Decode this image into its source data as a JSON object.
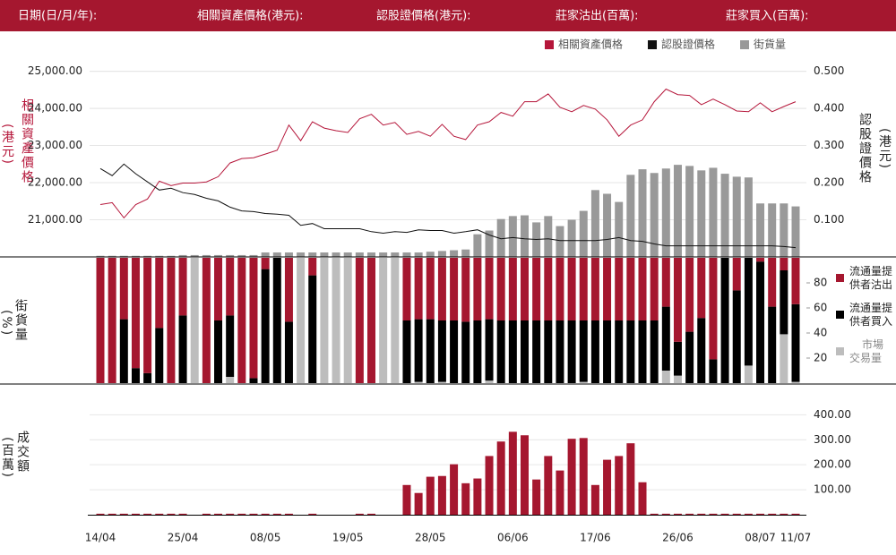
{
  "header": [
    "日期(日/月/年):",
    "相關資產價格(港元):",
    "認股證價格(港元):",
    "莊家沽出(百萬):",
    "莊家買入(百萬):"
  ],
  "chart_data": [
    {
      "type": "line",
      "ylabel": "相關資產價格",
      "ylabel_unit": "(港元)",
      "y2label": "認股證價格",
      "y2label_unit": "(港元)",
      "ylim": [
        20000,
        25400
      ],
      "yticks": [
        {
          "value": 21000,
          "label": "21,000.00"
        },
        {
          "value": 22000,
          "label": "22,000.00"
        },
        {
          "value": 23000,
          "label": "23,000.00"
        },
        {
          "value": 24000,
          "label": "24,000.00"
        },
        {
          "value": 25000,
          "label": "25,000.00"
        }
      ],
      "y2lim": [
        0,
        0.54
      ],
      "y2ticks": [
        {
          "value": 0.1,
          "label": "0.100"
        },
        {
          "value": 0.2,
          "label": "0.200"
        },
        {
          "value": 0.3,
          "label": "0.300"
        },
        {
          "value": 0.4,
          "label": "0.400"
        },
        {
          "value": 0.5,
          "label": "0.500"
        }
      ],
      "grid": true,
      "legend": "top-right",
      "series": [
        {
          "name": "相關資產價格",
          "color": "#b5163a",
          "type": "line",
          "values": [
            21410,
            21460,
            21050,
            21410,
            21560,
            22040,
            21920,
            21990,
            21990,
            22020,
            22160,
            22530,
            22650,
            22670,
            22770,
            22870,
            23550,
            23130,
            23640,
            23470,
            23400,
            23350,
            23720,
            23840,
            23550,
            23620,
            23300,
            23380,
            23250,
            23570,
            23250,
            23160,
            23550,
            23640,
            23890,
            23790,
            24180,
            24180,
            24390,
            24030,
            23910,
            24080,
            23980,
            23690,
            23250,
            23550,
            23690,
            24180,
            24520,
            24370,
            24350,
            24100,
            24250,
            24100,
            23930,
            23910,
            24150,
            23910,
            24050,
            24180
          ]
        },
        {
          "name": "認股證價格",
          "color": "#111111",
          "type": "line",
          "axis": "y2",
          "values": [
            0.238,
            0.219,
            0.25,
            0.224,
            0.202,
            0.18,
            0.185,
            0.173,
            0.168,
            0.158,
            0.151,
            0.134,
            0.124,
            0.122,
            0.117,
            0.115,
            0.112,
            0.085,
            0.09,
            0.076,
            0.076,
            0.076,
            0.076,
            0.068,
            0.064,
            0.068,
            0.066,
            0.073,
            0.071,
            0.071,
            0.064,
            0.068,
            0.073,
            0.059,
            0.049,
            0.052,
            0.049,
            0.047,
            0.049,
            0.044,
            0.044,
            0.044,
            0.044,
            0.047,
            0.052,
            0.044,
            0.042,
            0.035,
            0.03,
            0.03,
            0.03,
            0.03,
            0.03,
            0.03,
            0.03,
            0.03,
            0.03,
            0.03,
            0.028,
            0.025
          ]
        },
        {
          "name": "街貨量",
          "color": "#999999",
          "type": "bar",
          "axis": "y2",
          "values": [
            0.003,
            0.003,
            0.003,
            0.003,
            0.003,
            0.003,
            0.003,
            0.005,
            0.005,
            0.005,
            0.005,
            0.005,
            0.005,
            0.005,
            0.012,
            0.012,
            0.012,
            0.012,
            0.012,
            0.012,
            0.012,
            0.012,
            0.012,
            0.012,
            0.012,
            0.012,
            0.012,
            0.012,
            0.014,
            0.016,
            0.018,
            0.02,
            0.061,
            0.071,
            0.102,
            0.11,
            0.112,
            0.093,
            0.11,
            0.083,
            0.1,
            0.124,
            0.18,
            0.17,
            0.148,
            0.221,
            0.236,
            0.226,
            0.238,
            0.248,
            0.245,
            0.233,
            0.24,
            0.224,
            0.216,
            0.214,
            0.144,
            0.144,
            0.144,
            0.136
          ]
        }
      ]
    },
    {
      "type": "stacked_bar",
      "ylabel": "街貨量",
      "ylabel_unit": "(%)",
      "ylim": [
        0,
        100
      ],
      "yticks": [
        20,
        40,
        60,
        80
      ],
      "legend": "right",
      "series": [
        {
          "name": "市場交易量",
          "color": "#bdbdbd",
          "values": [
            0,
            0,
            0,
            0,
            0,
            0,
            0,
            0,
            100,
            0,
            0,
            5,
            0,
            0,
            0,
            0,
            0,
            100,
            0,
            100,
            100,
            100,
            0,
            0,
            100,
            100,
            0,
            1,
            0,
            1,
            0,
            0,
            0,
            2,
            0,
            0,
            0,
            0,
            0,
            0,
            0,
            1,
            0,
            0,
            0,
            0,
            0,
            0,
            10,
            6,
            0,
            0,
            0,
            0,
            0,
            14,
            0,
            0,
            39,
            1
          ]
        },
        {
          "name": "流通量提供者買入",
          "color": "#000000",
          "values": [
            0,
            0,
            51,
            12,
            8,
            44,
            0,
            54,
            0,
            0,
            50,
            49,
            0,
            4,
            91,
            100,
            49,
            0,
            86,
            0,
            0,
            0,
            0,
            0,
            0,
            0,
            50,
            50,
            51,
            49,
            50,
            49,
            50,
            49,
            50,
            50,
            50,
            50,
            50,
            50,
            50,
            49,
            50,
            50,
            50,
            50,
            50,
            50,
            51,
            27,
            41,
            52,
            19,
            100,
            74,
            86,
            97,
            61,
            51,
            62
          ]
        },
        {
          "name": "流通量提供者沽出",
          "color": "#a5172f",
          "values": [
            100,
            100,
            49,
            88,
            92,
            56,
            100,
            46,
            0,
            100,
            50,
            46,
            100,
            96,
            9,
            0,
            51,
            0,
            14,
            0,
            0,
            0,
            100,
            100,
            0,
            0,
            50,
            49,
            49,
            50,
            50,
            51,
            50,
            49,
            50,
            50,
            50,
            50,
            50,
            50,
            50,
            50,
            50,
            50,
            50,
            50,
            50,
            50,
            39,
            67,
            59,
            48,
            81,
            0,
            26,
            0,
            3,
            39,
            10,
            37
          ]
        }
      ]
    },
    {
      "type": "bar",
      "ylabel": "成交額",
      "ylabel_unit": "(百萬)",
      "ylim": [
        0,
        430
      ],
      "yticks": [
        {
          "value": 100,
          "label": "100.00"
        },
        {
          "value": 200,
          "label": "200.00"
        },
        {
          "value": 300,
          "label": "300.00"
        },
        {
          "value": 400,
          "label": "400.00"
        }
      ],
      "grid": true,
      "color": "#a5172f",
      "categories": [
        "14/04",
        null,
        null,
        null,
        null,
        null,
        null,
        "25/04",
        null,
        null,
        null,
        null,
        null,
        null,
        "08/05",
        null,
        null,
        null,
        null,
        null,
        null,
        "19/05",
        null,
        null,
        null,
        null,
        null,
        null,
        "28/05",
        null,
        null,
        null,
        null,
        null,
        null,
        "06/06",
        null,
        null,
        null,
        null,
        null,
        null,
        "17/06",
        null,
        null,
        null,
        null,
        null,
        null,
        "26/06",
        null,
        null,
        null,
        null,
        null,
        null,
        "08/07",
        null,
        null,
        "11/07"
      ],
      "values": [
        4,
        4,
        4,
        4,
        4,
        4,
        4,
        4,
        0,
        4,
        4,
        4,
        4,
        4,
        4,
        4,
        4,
        0,
        4,
        0,
        0,
        0,
        4,
        4,
        0,
        0,
        119,
        87,
        152,
        155,
        202,
        126,
        145,
        235,
        293,
        332,
        318,
        141,
        235,
        177,
        304,
        307,
        119,
        220,
        235,
        286,
        130,
        4,
        4,
        4,
        4,
        4,
        4,
        4,
        4,
        4,
        4,
        4,
        4,
        4
      ]
    }
  ]
}
